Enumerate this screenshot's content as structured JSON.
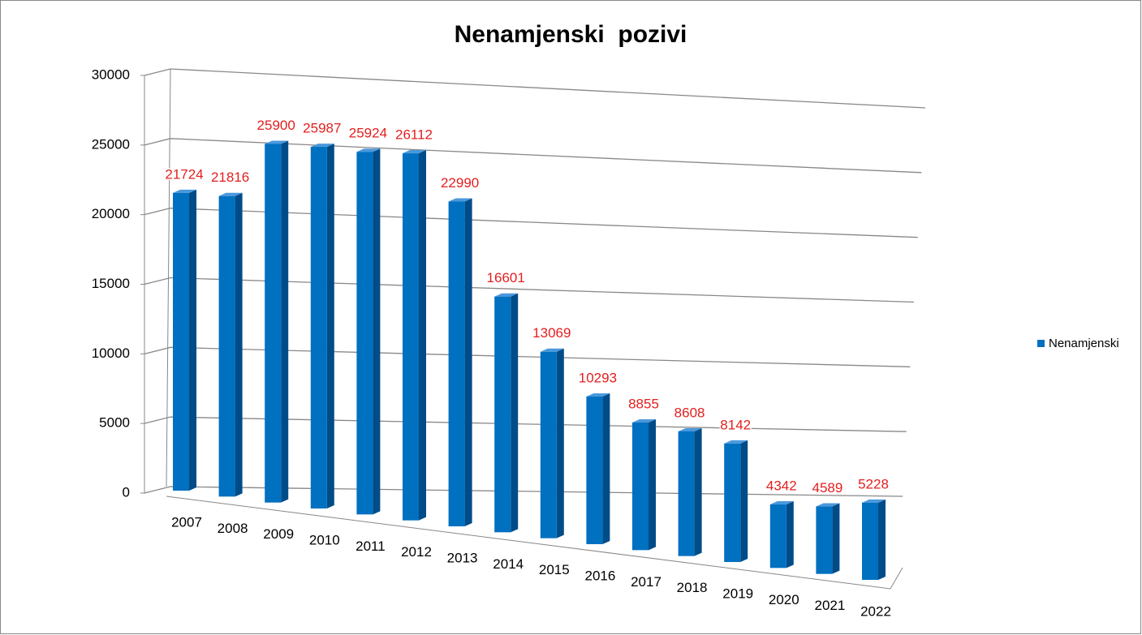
{
  "chart_data": {
    "type": "bar3d",
    "title": "Nenamjenski  pozivi",
    "categories": [
      "2007",
      "2008",
      "2009",
      "2010",
      "2011",
      "2012",
      "2013",
      "2014",
      "2015",
      "2016",
      "2017",
      "2018",
      "2019",
      "2020",
      "2021",
      "2022"
    ],
    "series": [
      {
        "name": "Nenamjenski",
        "color": "#0070c0",
        "values": [
          21724,
          21816,
          25900,
          25987,
          25924,
          26112,
          22990,
          16601,
          13069,
          10293,
          8855,
          8608,
          8142,
          4342,
          4589,
          5228
        ]
      }
    ],
    "ylim": [
      0,
      30000
    ],
    "yticks": [
      0,
      5000,
      10000,
      15000,
      20000,
      25000,
      30000
    ],
    "grid": true,
    "legend": "right",
    "label_color": "#e41e1e"
  }
}
